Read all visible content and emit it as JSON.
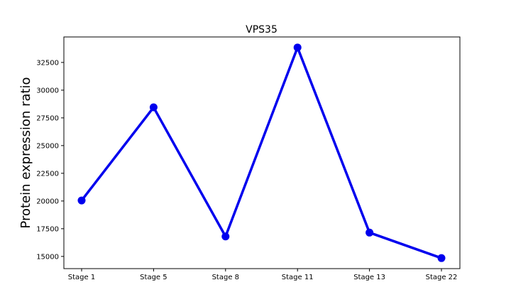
{
  "chart_data": {
    "type": "line",
    "title": "VPS35",
    "xlabel": "",
    "ylabel": "Protein expression ratio",
    "categories": [
      "Stage 1",
      "Stage 5",
      "Stage 8",
      "Stage 11",
      "Stage 13",
      "Stage 22"
    ],
    "series": [
      {
        "name": "VPS35",
        "values": [
          20050,
          28450,
          16800,
          33850,
          17150,
          14850
        ],
        "color": "#0000ee"
      }
    ],
    "yticks": [
      15000,
      17500,
      20000,
      22500,
      25000,
      27500,
      30000,
      32500
    ],
    "ylim": [
      13900,
      34800
    ],
    "grid": false
  }
}
